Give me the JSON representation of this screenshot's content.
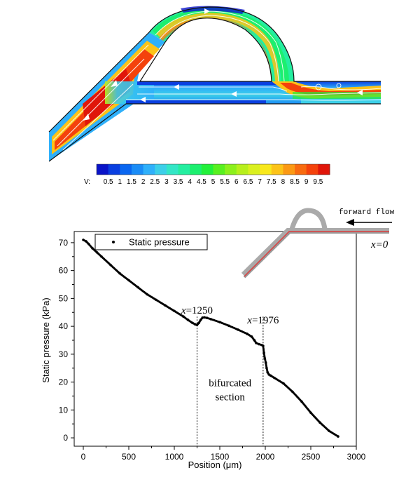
{
  "colorbar": {
    "prefix": "V:",
    "ticks": [
      "0.5",
      "1",
      "1.5",
      "2",
      "2.5",
      "3",
      "3.5",
      "4",
      "4.5",
      "5",
      "5.5",
      "6",
      "6.5",
      "7",
      "7.5",
      "8",
      "8.5",
      "9",
      "9.5"
    ],
    "colors": [
      "#0a14c8",
      "#0a3fe0",
      "#0a66f0",
      "#1a8cf6",
      "#2fb0fa",
      "#3ccfe8",
      "#33e6c6",
      "#24eea0",
      "#1cef6f",
      "#22f03a",
      "#58f020",
      "#8cf01c",
      "#b7ef1c",
      "#daf020",
      "#f8e81c",
      "#fcc318",
      "#fb9914",
      "#f86b10",
      "#f4420c",
      "#e0160a"
    ]
  },
  "chart_data": {
    "type": "scatter",
    "xlabel": "Position (μm)",
    "ylabel": "Static pressure (kPa)",
    "xlim": [
      -100,
      3000
    ],
    "ylim": [
      -3,
      74
    ],
    "xticks": [
      0,
      500,
      1000,
      1500,
      2000,
      2500,
      3000
    ],
    "yticks": [
      0,
      10,
      20,
      30,
      40,
      50,
      60,
      70
    ],
    "legend": "top-left",
    "series": [
      {
        "name": "Static pressure",
        "marker_color": "#000000",
        "x": [
          0,
          30,
          60,
          100,
          150,
          200,
          300,
          400,
          500,
          600,
          700,
          800,
          900,
          1000,
          1100,
          1150,
          1200,
          1230,
          1250,
          1270,
          1290,
          1310,
          1330,
          1360,
          1400,
          1500,
          1600,
          1700,
          1800,
          1850,
          1880,
          1900,
          1930,
          1960,
          1976,
          1985,
          1995,
          2005,
          2015,
          2025,
          2040,
          2060,
          2100,
          2200,
          2300,
          2400,
          2500,
          2600,
          2700,
          2800
        ],
        "y": [
          71,
          70.5,
          69.5,
          68,
          66.5,
          65,
          62,
          59,
          56.5,
          54,
          51.5,
          49.5,
          47.5,
          45.5,
          43.5,
          42.3,
          41.2,
          40.7,
          40.5,
          41.2,
          42.3,
          43.1,
          43.2,
          43,
          42.6,
          41.5,
          40.2,
          38.8,
          37.3,
          36.3,
          35,
          34,
          33.6,
          33.3,
          33,
          30.5,
          28.5,
          27,
          25,
          23.5,
          22.7,
          22.3,
          21.5,
          19.5,
          16.5,
          13,
          9,
          5.5,
          2.5,
          0.5
        ]
      }
    ],
    "annotations": [
      {
        "text": "x=1250",
        "x": 1250,
        "y": 44.5
      },
      {
        "text": "x=1976",
        "x": 1976,
        "y": 41
      },
      {
        "text": "bifurcated",
        "x": 1613,
        "y": 18.5
      },
      {
        "text": "section",
        "x": 1613,
        "y": 13.5
      }
    ],
    "vlines": [
      1250,
      1976
    ]
  },
  "inset": {
    "arrow_label": "forward flow",
    "origin_label": "x=0"
  }
}
